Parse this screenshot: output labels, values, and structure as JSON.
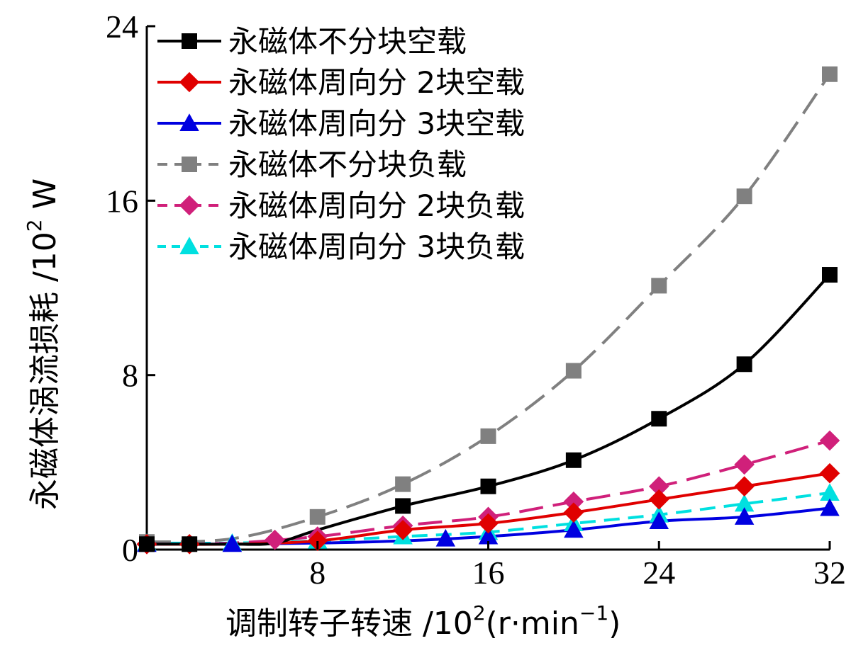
{
  "chart_data": {
    "type": "line",
    "title": "",
    "xlabel": {
      "prefix": "调制转子转速 /10",
      "exp": "2",
      "unit_open": "(r·min",
      "unit_exp": "−1",
      "unit_close": ")"
    },
    "ylabel": {
      "prefix": "永磁体涡流损耗 /10",
      "exp": "2",
      "unit": " W"
    },
    "xlim": [
      0,
      32
    ],
    "ylim": [
      0,
      24
    ],
    "xticks": [
      8,
      16,
      24,
      32
    ],
    "yticks": [
      0,
      8,
      16,
      24
    ],
    "xtick_labels": [
      "8",
      "16",
      "24",
      "32"
    ],
    "ytick_labels": [
      "0",
      "8",
      "16",
      "24"
    ],
    "legend_position": "top-left",
    "series": [
      {
        "name": "永磁体不分块空载",
        "color": "#000000",
        "dash": "solid",
        "marker": "square",
        "x": [
          0,
          2,
          4,
          6,
          8,
          12,
          16,
          20,
          24,
          28,
          32
        ],
        "y": [
          0.25,
          0.25,
          0.25,
          0.3,
          0.9,
          2.0,
          2.9,
          4.1,
          6.0,
          8.5,
          12.6
        ],
        "marker_x": [
          0,
          2,
          12,
          16,
          20,
          24,
          28,
          32
        ]
      },
      {
        "name": "永磁体周向分 2块空载",
        "color": "#e00000",
        "dash": "solid",
        "marker": "diamond",
        "x": [
          0,
          4,
          8,
          12,
          16,
          20,
          24,
          28,
          32
        ],
        "y": [
          0.25,
          0.25,
          0.4,
          0.9,
          1.2,
          1.7,
          2.3,
          2.9,
          3.5
        ],
        "marker_x": [
          0,
          2,
          8,
          12,
          16,
          20,
          24,
          28,
          32
        ]
      },
      {
        "name": "永磁体周向分 3块空载",
        "color": "#0000e0",
        "dash": "solid",
        "marker": "triangle",
        "x": [
          0,
          4,
          8,
          12,
          16,
          20,
          24,
          28,
          32
        ],
        "y": [
          0.25,
          0.25,
          0.3,
          0.4,
          0.6,
          0.9,
          1.3,
          1.5,
          1.9
        ],
        "marker_x": [
          0,
          4,
          14,
          16,
          20,
          24,
          28,
          32
        ]
      },
      {
        "name": "永磁体不分块负载",
        "color": "#808080",
        "dash": "long",
        "marker": "square",
        "x": [
          0,
          4,
          8,
          12,
          16,
          20,
          24,
          28,
          32
        ],
        "y": [
          0.35,
          0.5,
          1.5,
          3.0,
          5.2,
          8.2,
          12.1,
          16.2,
          21.8
        ],
        "marker_x": [
          0,
          8,
          12,
          16,
          20,
          24,
          28,
          32
        ]
      },
      {
        "name": "永磁体周向分 2块负载",
        "color": "#d0207a",
        "dash": "long",
        "marker": "diamond",
        "x": [
          0,
          4,
          8,
          12,
          16,
          20,
          24,
          28,
          32
        ],
        "y": [
          0.25,
          0.3,
          0.6,
          1.1,
          1.5,
          2.2,
          2.9,
          3.9,
          5.0
        ],
        "marker_x": [
          0,
          6,
          8,
          12,
          16,
          20,
          24,
          28,
          32
        ]
      },
      {
        "name": "永磁体周向分 3块负载",
        "color": "#00e0e0",
        "dash": "medium",
        "marker": "triangle",
        "x": [
          0,
          4,
          8,
          12,
          16,
          20,
          24,
          28,
          32
        ],
        "y": [
          0.3,
          0.3,
          0.4,
          0.6,
          0.8,
          1.2,
          1.6,
          2.1,
          2.6
        ],
        "marker_x": [
          0,
          4,
          8,
          12,
          16,
          20,
          24,
          28,
          32
        ]
      }
    ]
  }
}
